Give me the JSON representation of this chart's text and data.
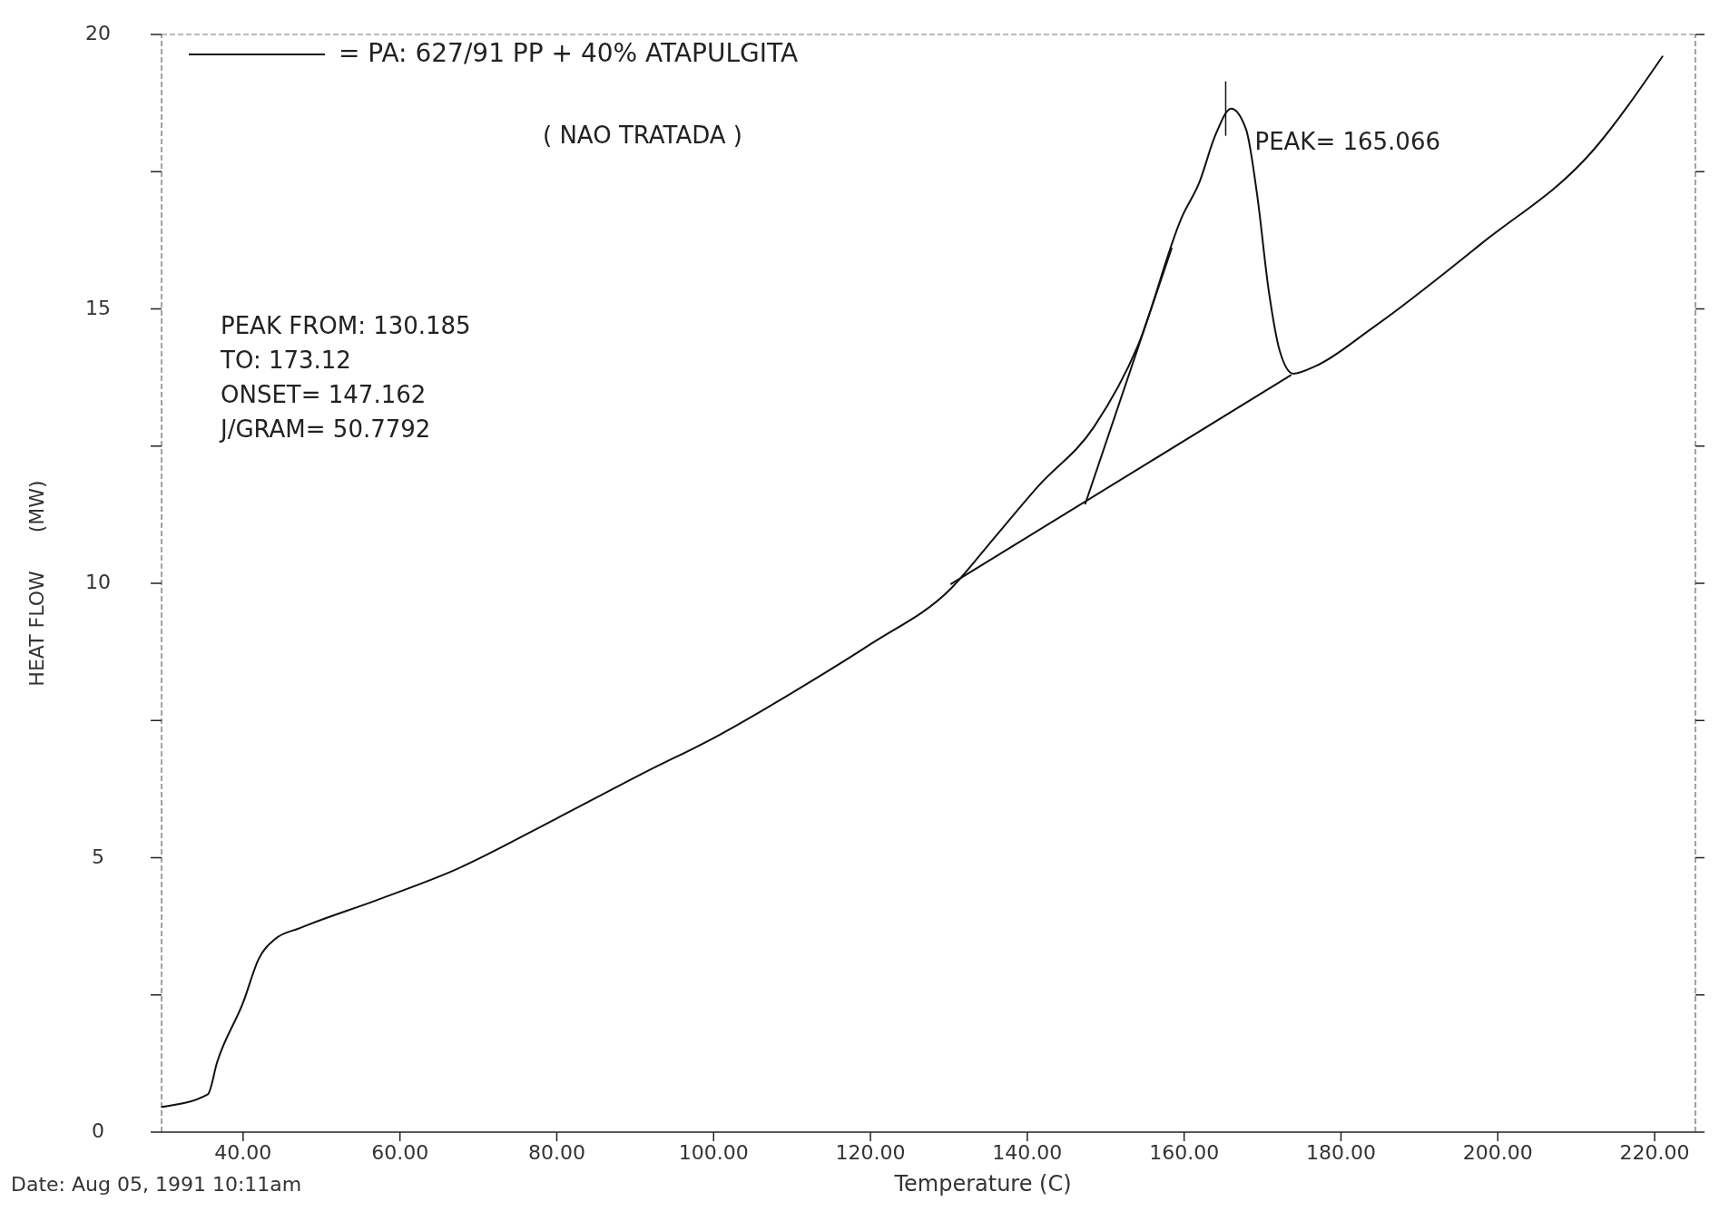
{
  "chart_data": {
    "type": "line",
    "subtitle": "( NAO TRATADA )",
    "xlabel": "Temperature (C)",
    "ylabel": "HEAT FLOW      (MW)",
    "xlim": [
      29.6,
      225.2
    ],
    "ylim": [
      0,
      20
    ],
    "xticks": [
      {
        "value": 40,
        "label": "40.00"
      },
      {
        "value": 60,
        "label": "60.00"
      },
      {
        "value": 80,
        "label": "80.00"
      },
      {
        "value": 100,
        "label": "100.00"
      },
      {
        "value": 120,
        "label": "120.00"
      },
      {
        "value": 140,
        "label": "140.00"
      },
      {
        "value": 160,
        "label": "160.00"
      },
      {
        "value": 180,
        "label": "180.00"
      },
      {
        "value": 200,
        "label": "200.00"
      },
      {
        "value": 220,
        "label": "220.00"
      }
    ],
    "yticks": [
      0,
      {
        "value": 2.5,
        "label": null
      },
      5,
      {
        "value": 7.5,
        "label": null
      },
      10,
      {
        "value": 12.5,
        "label": null
      },
      15,
      {
        "value": 17.5,
        "label": null
      },
      20
    ],
    "grid": false,
    "legend": "top left",
    "marker": "none",
    "line_style": "solid",
    "series": [
      {
        "name": "= PA: 627/91 PP + 40% ATAPULGITA",
        "color": "#111111",
        "x": [
          29.65,
          35.5,
          36.7,
          40.0,
          42.0,
          44.1,
          47.3,
          57.1,
          66.9,
          79.9,
          91.3,
          100.0,
          111.7,
          120.0,
          130.3,
          135.8,
          141.4,
          148.5,
          154.1,
          159.8,
          161.9,
          164.0,
          166.0,
          167.9,
          169.3,
          170.8,
          172.2,
          173.9,
          176.8,
          183.8,
          198.0,
          212.1,
          221.0
        ],
        "values": [
          0.46,
          0.69,
          1.28,
          2.36,
          3.16,
          3.52,
          3.72,
          4.23,
          4.77,
          5.71,
          6.56,
          7.18,
          8.15,
          8.89,
          9.91,
          10.83,
          11.77,
          12.85,
          14.33,
          16.7,
          17.29,
          18.17,
          18.65,
          18.27,
          17.09,
          15.32,
          14.23,
          13.82,
          13.96,
          14.63,
          16.2,
          17.88,
          19.6
        ]
      },
      {
        "color": "#111111",
        "x": [
          130.3,
          173.6
        ],
        "values": [
          9.99,
          13.79
        ]
      },
      {
        "color": "#111111",
        "x": [
          147.4,
          158.4
        ],
        "values": [
          11.45,
          16.1
        ]
      }
    ],
    "annotations": [
      "PEAK FROM: 130.185",
      "TO: 173.12",
      "ONSET= 147.162",
      "J/GRAM= 50.7792",
      {
        "text": "PEAK= 165.066",
        "x": 165.3,
        "y": 18.65
      },
      "Date: Aug 05, 1991 10:11am"
    ]
  }
}
